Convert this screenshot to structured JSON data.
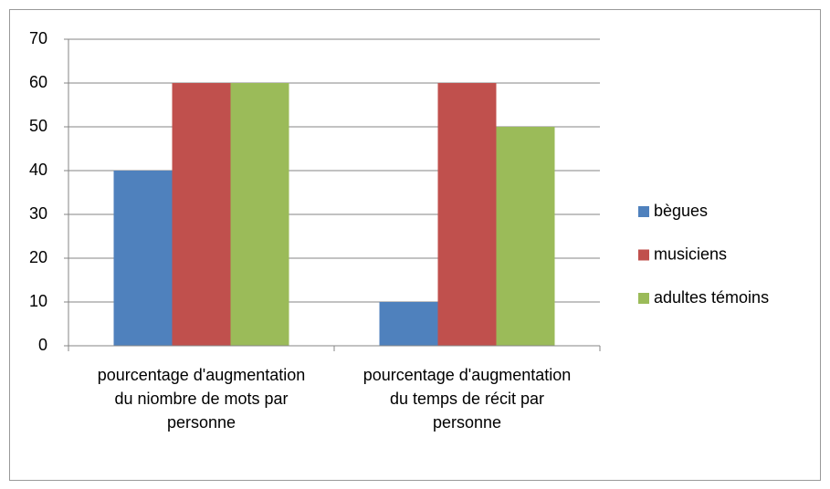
{
  "chart_data": {
    "type": "bar",
    "categories": [
      "pourcentage d'augmentation du niombre de mots par personne",
      "pourcentage d'augmentation du temps de récit par personne"
    ],
    "series": [
      {
        "name": "bègues",
        "color": "#4f81bd",
        "values": [
          40,
          10
        ]
      },
      {
        "name": "musiciens",
        "color": "#c0504d",
        "values": [
          60,
          60
        ]
      },
      {
        "name": "adultes témoins",
        "color": "#9bbb59",
        "values": [
          60,
          50
        ]
      }
    ],
    "ylim": [
      0,
      70
    ],
    "yticks": [
      0,
      10,
      20,
      30,
      40,
      50,
      60,
      70
    ],
    "grid": true,
    "legend": "right"
  }
}
